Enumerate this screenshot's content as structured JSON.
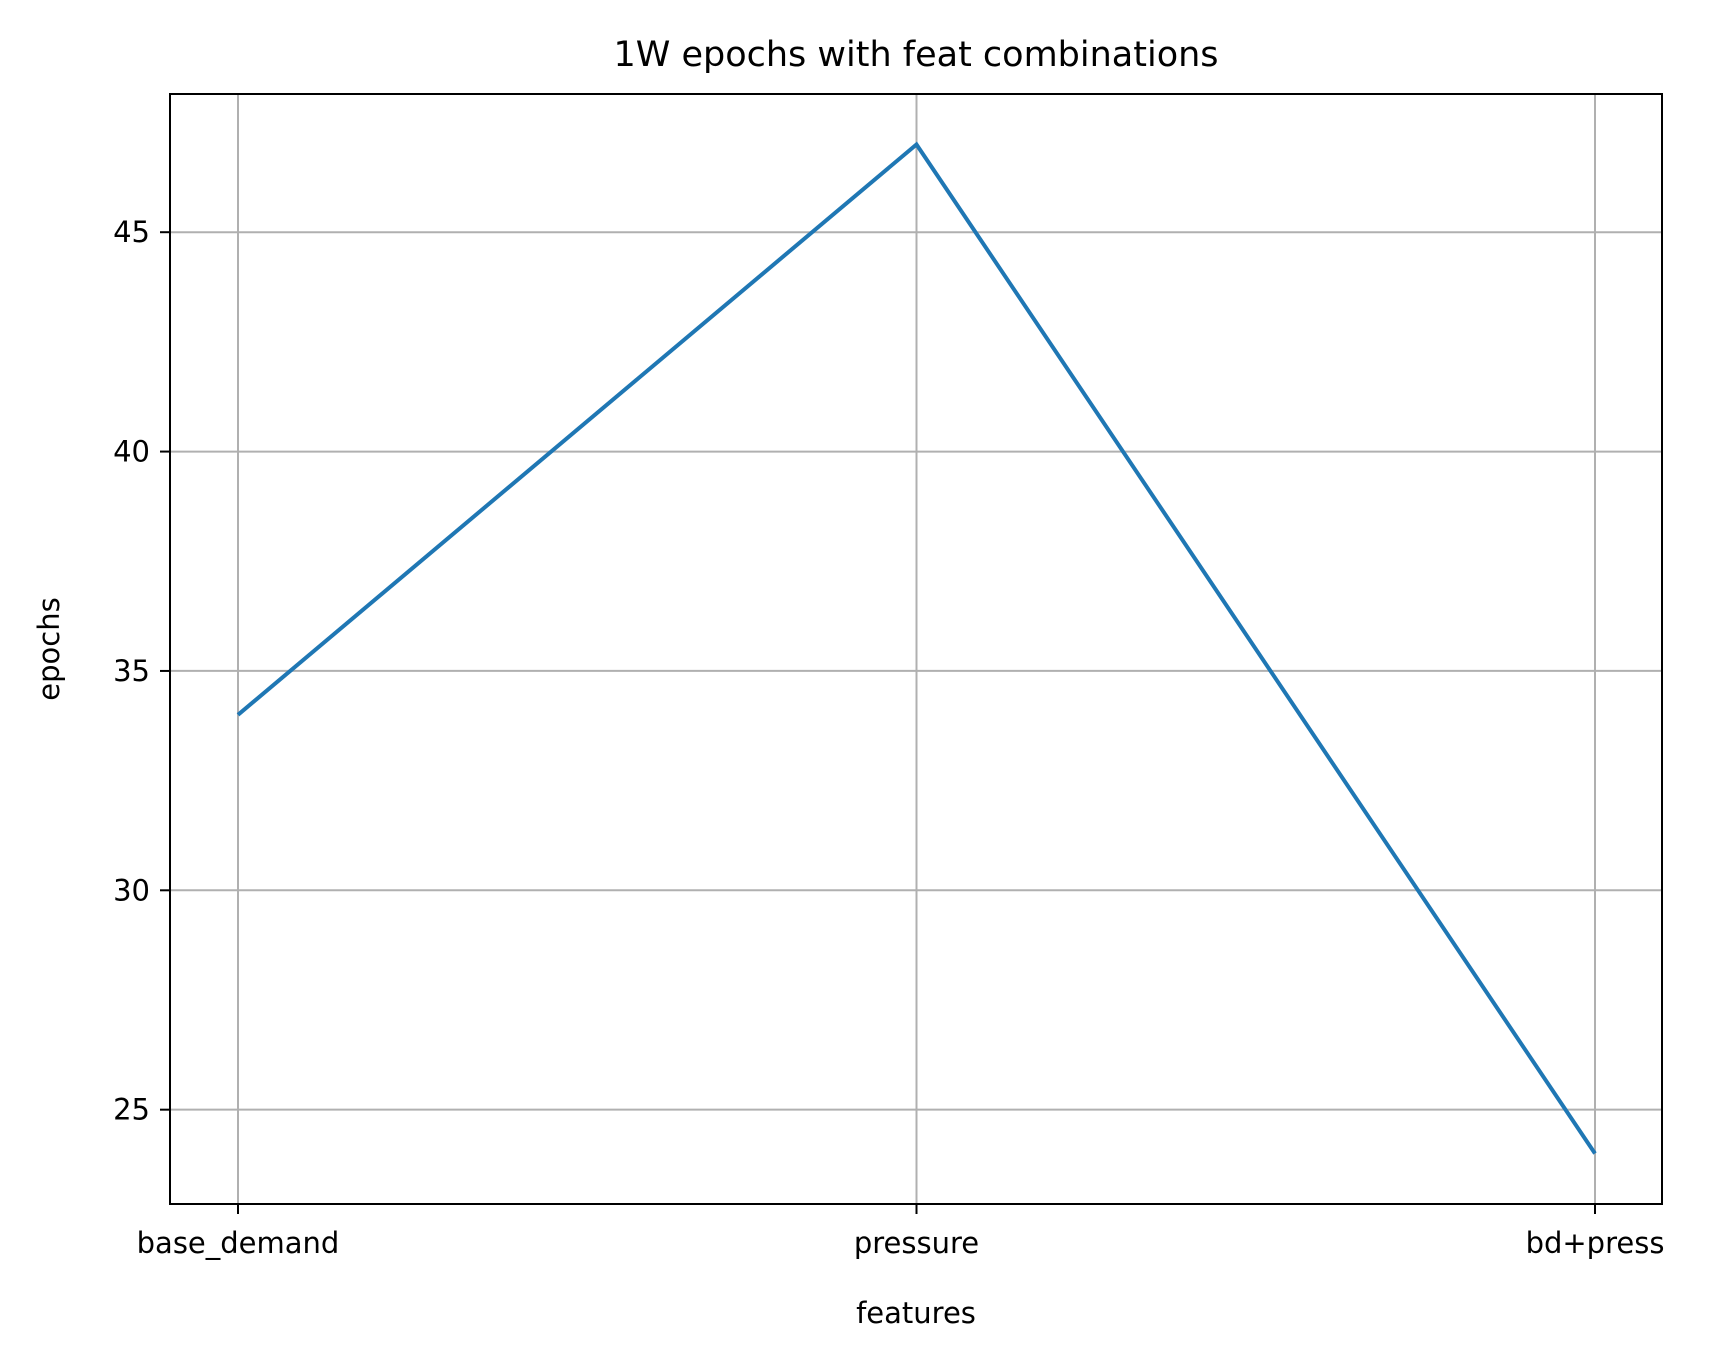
{
  "chart_data": {
    "type": "line",
    "title": "1W epochs with feat combinations",
    "xlabel": "features",
    "ylabel": "epochs",
    "categories": [
      "base_demand",
      "pressure",
      "bd+press"
    ],
    "series": [
      {
        "values": [
          34,
          47,
          24
        ],
        "color": "#1f77b4"
      }
    ],
    "ylim": [
      22.85,
      48.15
    ],
    "yticks": [
      25,
      30,
      35,
      40,
      45
    ],
    "grid": true
  }
}
